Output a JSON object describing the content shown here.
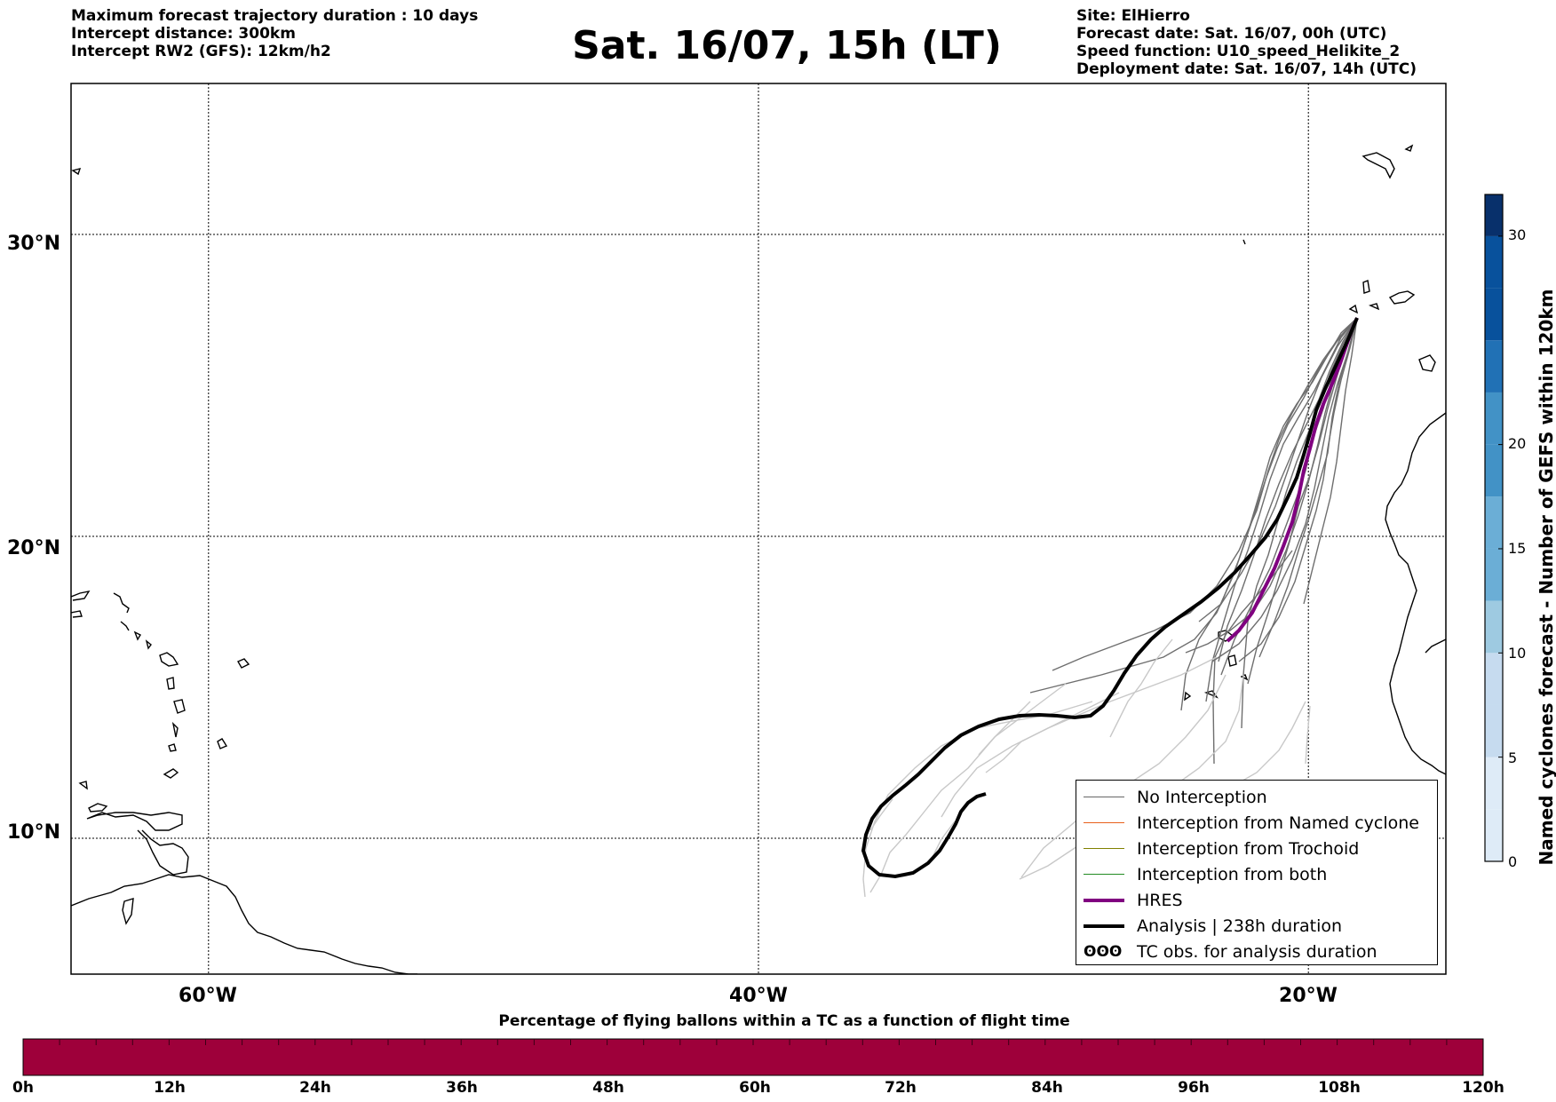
{
  "header": {
    "left_lines": [
      "Maximum forecast trajectory duration : 10 days",
      "Intercept distance: 300km",
      "Intercept RW2 (GFS):  12km/h2"
    ],
    "title": "Sat. 16/07, 15h (LT)",
    "right_lines": [
      "Site: ElHierro",
      "Forecast date: Sat. 16/07, 00h (UTC)",
      "Speed function: U10_speed_Helikite_2",
      "Deployment date: Sat. 16/07, 14h (UTC)"
    ]
  },
  "map": {
    "lat_labels": [
      "30°N",
      "20°N",
      "10°N"
    ],
    "lon_labels": [
      "60°W",
      "40°W",
      "20°W"
    ],
    "lat_values": [
      30,
      20,
      10
    ],
    "lon_values": [
      -60,
      -40,
      -20
    ],
    "extent": {
      "lon_min": -65,
      "lon_max": -15,
      "lat_min": 5.5,
      "lat_max": 35
    }
  },
  "legend": {
    "items": [
      {
        "label": "No Interception",
        "color": "#666666",
        "kind": "line-thin"
      },
      {
        "label": "Interception from Named cyclone",
        "color": "#e8601c",
        "kind": "line-thin"
      },
      {
        "label": "Interception from Trochoid",
        "color": "#808000",
        "kind": "line-thin"
      },
      {
        "label": "Interception from both",
        "color": "#228b22",
        "kind": "line-thin"
      },
      {
        "label": "HRES",
        "color": "#800080",
        "kind": "line-thick"
      },
      {
        "label": "Analysis | 238h duration",
        "color": "#000000",
        "kind": "line-thick"
      },
      {
        "label": "TC obs. for analysis duration",
        "color": "#000000",
        "kind": "symbol",
        "symbol": "ʘʘʘ"
      }
    ]
  },
  "colorbar_right": {
    "label": "Named cyclones forecast - Number of GEFS within 120km",
    "ticks": [
      "30",
      "20",
      "15",
      "10",
      "5",
      "0"
    ],
    "tick_values": [
      30,
      20,
      15,
      10,
      5,
      0
    ],
    "max": 32,
    "colors": [
      "#deebf7",
      "#c6dbef",
      "#9ecae1",
      "#6baed6",
      "#4292c6",
      "#2171b5",
      "#08519c",
      "#08306b"
    ]
  },
  "bottom_bar": {
    "title": "Percentage of flying ballons within a TC as a function of flight time",
    "ticks": [
      "0h",
      "12h",
      "24h",
      "36h",
      "48h",
      "60h",
      "72h",
      "84h",
      "96h",
      "108h",
      "120h"
    ],
    "color": "#9e003a"
  }
}
